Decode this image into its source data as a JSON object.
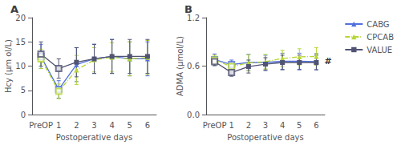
{
  "chart_data": [
    {
      "type": "line",
      "title": "A",
      "xlabel": "Postoperative days",
      "ylabel": "Hcy (μm ol/L)",
      "categories": [
        "PreOP",
        "1",
        "2",
        "3",
        "4",
        "5",
        "6"
      ],
      "ylim": [
        0,
        20
      ],
      "yticks": [
        0,
        5,
        10,
        15,
        20
      ],
      "grid": false,
      "legend": "upper right",
      "series": [
        {
          "name": "CABG",
          "marker": "triangle",
          "line_style": "solid",
          "values": [
            12.0,
            5.2,
            10.3,
            11.5,
            12.0,
            11.5,
            11.5
          ],
          "error": [
            2.5,
            1.8,
            3.5,
            3.0,
            3.5,
            3.5,
            3.5
          ],
          "marked": [
            true,
            true,
            false,
            false,
            false,
            false,
            false
          ]
        },
        {
          "name": "CPCAB",
          "marker": "triangle",
          "line_style": "dashdot",
          "values": [
            11.5,
            4.8,
            9.2,
            11.3,
            11.8,
            11.5,
            11.8
          ],
          "error": [
            2.0,
            1.5,
            3.0,
            2.5,
            3.0,
            3.5,
            3.5
          ],
          "marked": [
            true,
            true,
            false,
            false,
            false,
            false,
            false
          ]
        },
        {
          "name": "VALUE",
          "marker": "square",
          "line_style": "solid",
          "values": [
            12.5,
            9.5,
            10.8,
            11.5,
            12.0,
            12.0,
            12.0
          ],
          "error": [
            2.5,
            2.0,
            3.0,
            3.0,
            3.5,
            3.5,
            3.5
          ],
          "marked": [
            true,
            true,
            false,
            false,
            false,
            false,
            false
          ]
        }
      ]
    },
    {
      "type": "line",
      "title": "B",
      "xlabel": "Postoperative days",
      "ylabel": "ADMA (μmol/L)",
      "categories": [
        "PreOP",
        "1",
        "2",
        "3",
        "4",
        "5",
        "6"
      ],
      "ylim": [
        0.0,
        1.2
      ],
      "yticks": [
        {
          "value": 0.0,
          "label": "0.0"
        },
        0.6,
        1.2
      ],
      "grid": false,
      "legend": "upper right",
      "annotations": [
        {
          "text": "#",
          "series": "CABG",
          "x": "6"
        }
      ],
      "series": [
        {
          "name": "CABG",
          "marker": "triangle",
          "line_style": "solid",
          "values": [
            0.68,
            0.62,
            0.645,
            0.645,
            0.66,
            0.66,
            0.655
          ],
          "error": [
            0.07,
            0.055,
            0.1,
            0.09,
            0.1,
            0.1,
            0.1
          ],
          "marked": [
            true,
            true,
            false,
            false,
            false,
            false,
            false
          ]
        },
        {
          "name": "CPCAB",
          "marker": "triangle",
          "line_style": "dashdot",
          "values": [
            0.675,
            0.595,
            0.64,
            0.655,
            0.695,
            0.715,
            0.72
          ],
          "error": [
            0.06,
            0.055,
            0.1,
            0.09,
            0.1,
            0.1,
            0.11
          ],
          "marked": [
            true,
            true,
            false,
            false,
            false,
            false,
            false
          ]
        },
        {
          "name": "VALUE",
          "marker": "square",
          "line_style": "solid",
          "values": [
            0.655,
            0.52,
            0.595,
            0.625,
            0.645,
            0.645,
            0.645
          ],
          "error": [
            0.05,
            0.045,
            0.08,
            0.08,
            0.09,
            0.09,
            0.09
          ],
          "marked": [
            true,
            true,
            false,
            false,
            false,
            false,
            false
          ]
        }
      ]
    }
  ]
}
